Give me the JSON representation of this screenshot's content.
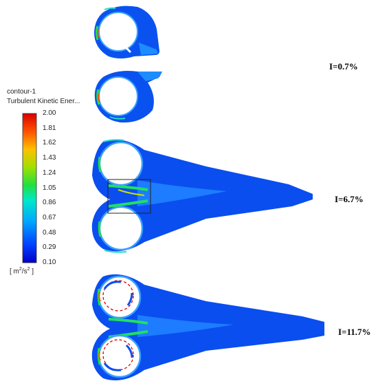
{
  "legend": {
    "name": "contour-1",
    "variable": "Turbulent Kinetic Ener...",
    "ticks": [
      "2.00",
      "1.81",
      "1.62",
      "1.43",
      "1.24",
      "1.05",
      "0.86",
      "0.67",
      "0.48",
      "0.29",
      "0.10"
    ],
    "units_prefix": "[ m",
    "units_sup1": "2",
    "units_mid": "/s",
    "units_sup2": "2",
    "units_suffix": " ]",
    "colors": [
      "#0000c8",
      "#0050ff",
      "#00c8ff",
      "#00e0a0",
      "#30e000",
      "#c8e000",
      "#ff9000",
      "#ff3000",
      "#e00000"
    ]
  },
  "cases": [
    {
      "label": "I=0.7%"
    },
    {
      "label": "I=6.7%"
    },
    {
      "label": "I=11.7%"
    }
  ]
}
